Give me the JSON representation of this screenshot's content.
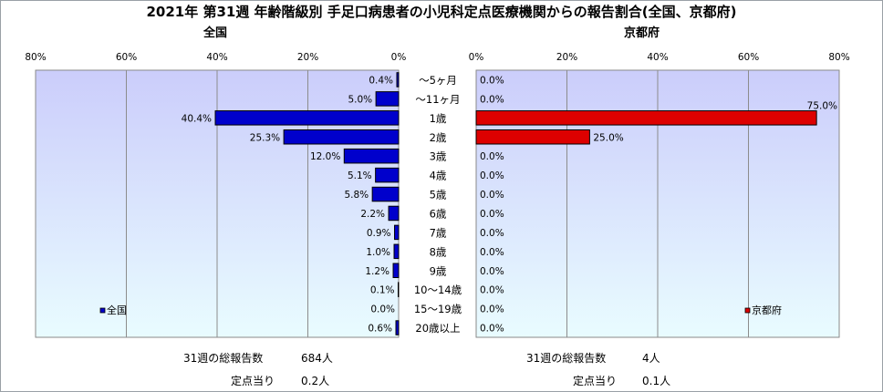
{
  "title": "2021年 第31週 年齢階級別 手足口病患者の小児科定点医療機関からの報告割合(全国、京都府)",
  "colors": {
    "national_bar": "#0000cc",
    "kyoto_bar": "#dd0000",
    "plot_bg_top": "#cbcdfb",
    "plot_bg_bottom": "#e9fcff"
  },
  "chart_data": [
    {
      "type": "bar",
      "orientation": "horizontal",
      "direction": "right-to-left",
      "title": "全国",
      "xlim": [
        0,
        80
      ],
      "ticks": [
        "80%",
        "60%",
        "40%",
        "20%",
        "0%"
      ],
      "tick_values": [
        80,
        60,
        40,
        20,
        0
      ],
      "legend": "全国",
      "legend_position": "bottom-left",
      "categories": [
        "～5ヶ月",
        "～11ヶ月",
        "1歳",
        "2歳",
        "3歳",
        "4歳",
        "5歳",
        "6歳",
        "7歳",
        "8歳",
        "9歳",
        "10～14歳",
        "15～19歳",
        "20歳以上"
      ],
      "values": [
        0.4,
        5.0,
        40.4,
        25.3,
        12.0,
        5.1,
        5.8,
        2.2,
        0.9,
        1.0,
        1.2,
        0.1,
        0.0,
        0.6
      ],
      "labels": [
        "0.4%",
        "5.0%",
        "40.4%",
        "25.3%",
        "12.0%",
        "5.1%",
        "5.8%",
        "2.2%",
        "0.9%",
        "1.0%",
        "1.2%",
        "0.1%",
        "0.0%",
        "0.6%"
      ]
    },
    {
      "type": "bar",
      "orientation": "horizontal",
      "direction": "left-to-right",
      "title": "京都府",
      "xlim": [
        0,
        80
      ],
      "ticks": [
        "0%",
        "20%",
        "40%",
        "60%",
        "80%"
      ],
      "tick_values": [
        0,
        20,
        40,
        60,
        80
      ],
      "legend": "京都府",
      "legend_position": "bottom-right",
      "categories": [
        "～5ヶ月",
        "～11ヶ月",
        "1歳",
        "2歳",
        "3歳",
        "4歳",
        "5歳",
        "6歳",
        "7歳",
        "8歳",
        "9歳",
        "10～14歳",
        "15～19歳",
        "20歳以上"
      ],
      "values": [
        0.0,
        0.0,
        75.0,
        25.0,
        0.0,
        0.0,
        0.0,
        0.0,
        0.0,
        0.0,
        0.0,
        0.0,
        0.0,
        0.0
      ],
      "labels": [
        "0.0%",
        "0.0%",
        "75.0%",
        "25.0%",
        "0.0%",
        "0.0%",
        "0.0%",
        "0.0%",
        "0.0%",
        "0.0%",
        "0.0%",
        "0.0%",
        "0.0%",
        "0.0%"
      ]
    }
  ],
  "stats": {
    "national": {
      "total_label": "31週の総報告数",
      "total_value": "684人",
      "per_label": "定点当り",
      "per_value": "0.2人"
    },
    "kyoto": {
      "total_label": "31週の総報告数",
      "total_value": "4人",
      "per_label": "定点当り",
      "per_value": "0.1人"
    }
  }
}
